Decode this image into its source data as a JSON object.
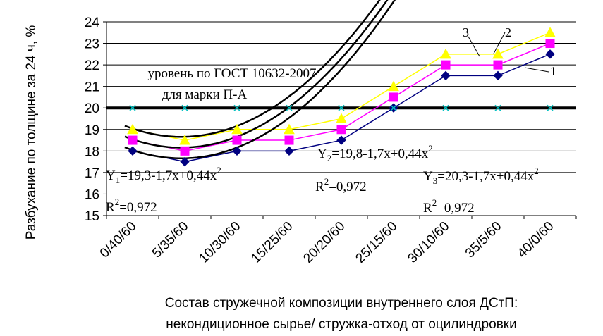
{
  "chart_data": {
    "type": "line",
    "categories": [
      "0/40/60",
      "5/35/60",
      "10/30/60",
      "15/25/60",
      "20/20/60",
      "25/15/60",
      "30/10/60",
      "35/5/60",
      "40/0/60"
    ],
    "ylim": [
      15,
      24
    ],
    "yticks": [
      "15",
      "16",
      "17",
      "18",
      "19",
      "20",
      "21",
      "22",
      "23",
      "24"
    ],
    "ylabel": "Разбухание по толщине за 24 ч, %",
    "xlabel_line1": "Состав стружечной композиции внутреннего слоя ДСтП:",
    "xlabel_line2": "некондиционное сырье/ стружка-отход от оцилиндровки",
    "grid": "horizontal",
    "series": [
      {
        "key": "s1",
        "values": [
          18.0,
          17.5,
          18.0,
          18.0,
          18.5,
          20.0,
          21.5,
          21.5,
          22.5
        ],
        "color": "#000080",
        "marker": "diamond"
      },
      {
        "key": "s2",
        "values": [
          18.5,
          18.0,
          18.5,
          18.5,
          19.0,
          20.5,
          22.0,
          22.0,
          23.0
        ],
        "color": "#ff00ff",
        "marker": "square"
      },
      {
        "key": "s3",
        "values": [
          19.0,
          18.5,
          19.0,
          19.0,
          19.5,
          21.0,
          22.5,
          22.5,
          23.5
        ],
        "color": "#ffff00",
        "marker": "triangle"
      },
      {
        "key": "gost",
        "values": [
          20,
          20,
          20,
          20,
          20,
          20,
          20,
          20,
          20
        ],
        "color": "#00c0c0",
        "marker": "x"
      }
    ],
    "trendlines": [
      {
        "label": "1",
        "intercept": 19.3,
        "b": -1.7,
        "c": 0.44
      },
      {
        "label": "2",
        "intercept": 19.8,
        "b": -1.7,
        "c": 0.44
      },
      {
        "label": "3",
        "intercept": 20.3,
        "b": -1.7,
        "c": 0.44
      }
    ],
    "annotations": {
      "gost_line1": "уровень по ГОСТ 10632-2007",
      "gost_line2": "для марки П-А",
      "eq1_main": "Y",
      "eq1_sub": "1",
      "eq1_rest": "=19,3-1,7x+0,44x",
      "eq1_sup": "2",
      "r2_1_main": "R",
      "r2_1_sup": "2",
      "r2_1_rest": "=0,972",
      "eq2_main": "Y",
      "eq2_sub": "2",
      "eq2_rest": "=19,8-1,7x+0,44x",
      "eq2_sup": "2",
      "r2_2_main": "R",
      "r2_2_sup": "2",
      "r2_2_rest": "=0,972",
      "eq3_main": "Y",
      "eq3_sub": "3",
      "eq3_rest": "=20,3-1,7x+0,44x",
      "eq3_sup": "2",
      "r2_3_main": "R",
      "r2_3_sup": "2",
      "r2_3_rest": "=0,972"
    }
  }
}
